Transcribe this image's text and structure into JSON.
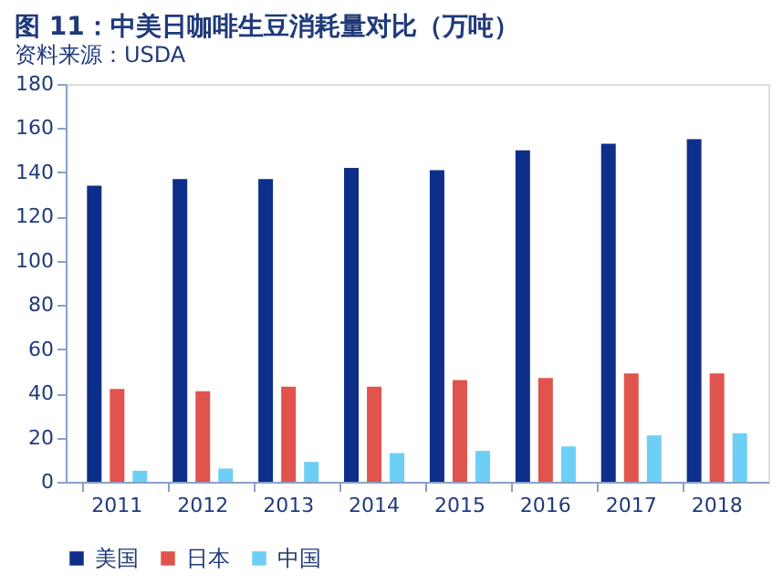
{
  "chart_data": {
    "type": "bar",
    "title": "图 11：中美日咖啡生豆消耗量对比（万吨）",
    "categories": [
      "2011",
      "2012",
      "2013",
      "2014",
      "2015",
      "2016",
      "2017",
      "2018"
    ],
    "series": [
      {
        "name": "美国",
        "color": "#0d2f8a",
        "values": [
          134,
          137,
          137,
          142,
          141,
          150,
          153,
          155
        ]
      },
      {
        "name": "日本",
        "color": "#e0544d",
        "values": [
          42,
          41,
          43,
          43,
          46,
          47,
          49,
          49
        ]
      },
      {
        "name": "中国",
        "color": "#6ecff6",
        "values": [
          5,
          6,
          9,
          13,
          14,
          16,
          21,
          22
        ]
      }
    ],
    "ylim": [
      0,
      180
    ],
    "yticks": [
      0,
      20,
      40,
      60,
      80,
      100,
      120,
      140,
      160,
      180
    ],
    "grid": false,
    "legend": "bottom",
    "annotations": [
      "资料来源：USDA"
    ]
  }
}
